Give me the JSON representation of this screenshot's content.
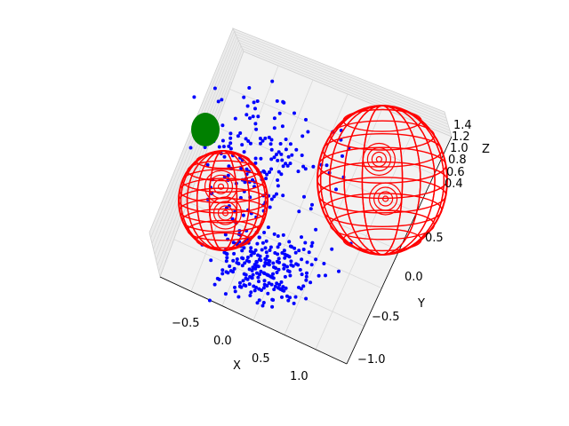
{
  "chart_data": {
    "type": "scatter",
    "projection": "3d",
    "title": "",
    "xlabel": "X",
    "ylabel": "Y",
    "zlabel": "Z",
    "x_ticks": [
      "−0.5",
      "0.0",
      "0.5",
      "1.0"
    ],
    "y_ticks": [
      "−1.0",
      "−0.5",
      "0.0",
      "0.5"
    ],
    "z_ticks": [
      "0.4",
      "0.6",
      "0.8",
      "1.0",
      "1.2",
      "1.4"
    ],
    "grid": true,
    "legend": "none",
    "colors": {
      "points": "#0000ff",
      "wireframe": "#ff0000",
      "solid_sphere": "#008000",
      "pane": "#f2f2f2",
      "grid": "#d9d9d9"
    },
    "series": [
      {
        "kind": "scatter",
        "color": "#0000ff",
        "count": 400
      },
      {
        "kind": "wireframe-spheres",
        "color": "#ff0000",
        "count": 2
      },
      {
        "kind": "solid-sphere",
        "color": "#008000",
        "count": 1
      }
    ]
  }
}
